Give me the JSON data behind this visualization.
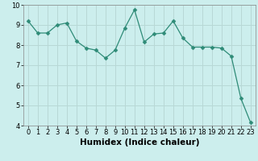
{
  "x": [
    0,
    1,
    2,
    3,
    4,
    5,
    6,
    7,
    8,
    9,
    10,
    11,
    12,
    13,
    14,
    15,
    16,
    17,
    18,
    19,
    20,
    21,
    22,
    23
  ],
  "y": [
    9.2,
    8.6,
    8.6,
    9.0,
    9.1,
    8.2,
    7.85,
    7.75,
    7.35,
    7.75,
    8.85,
    9.75,
    8.15,
    8.55,
    8.6,
    9.2,
    8.35,
    7.9,
    7.9,
    7.9,
    7.85,
    7.45,
    5.35,
    4.15
  ],
  "line_color": "#2e8b77",
  "marker": "D",
  "markersize": 2.5,
  "bg_color": "#cceeed",
  "grid_color": "#b8d8d6",
  "xlabel": "Humidex (Indice chaleur)",
  "xlim": [
    -0.5,
    23.5
  ],
  "ylim": [
    4,
    10
  ],
  "yticks": [
    4,
    5,
    6,
    7,
    8,
    9,
    10
  ],
  "xticks": [
    0,
    1,
    2,
    3,
    4,
    5,
    6,
    7,
    8,
    9,
    10,
    11,
    12,
    13,
    14,
    15,
    16,
    17,
    18,
    19,
    20,
    21,
    22,
    23
  ],
  "xlabel_fontsize": 7.5,
  "tick_fontsize": 6.0
}
